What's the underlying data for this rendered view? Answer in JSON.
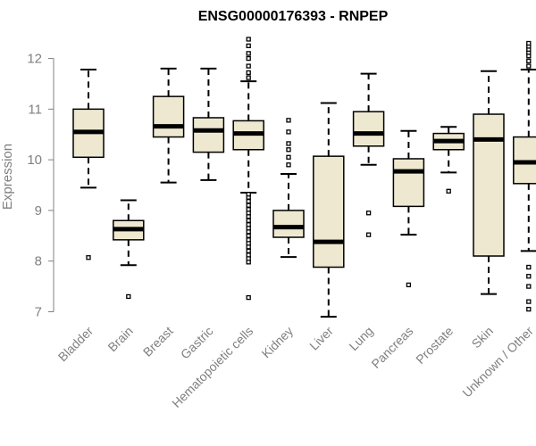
{
  "chart_data": {
    "type": "boxplot",
    "title": "ENSG00000176393 - RNPEP",
    "xlabel": "",
    "ylabel": "Expression",
    "ylim": [
      6.85,
      12.45
    ],
    "yticks": [
      7,
      8,
      9,
      10,
      11,
      12
    ],
    "box_fill": "#EEE8D0",
    "stroke_color": "#000000",
    "axis_color": "#808080",
    "categories": [
      "Bladder",
      "Brain",
      "Breast",
      "Gastric",
      "Hematopoietic cells",
      "Kidney",
      "Liver",
      "Lung",
      "Pancreas",
      "Prostate",
      "Skin",
      "Unknown / Other"
    ],
    "series": [
      {
        "name": "Bladder",
        "whisker_low": 9.45,
        "q1": 10.05,
        "median": 10.55,
        "q3": 11.0,
        "whisker_high": 11.78,
        "outliers": [
          8.07
        ]
      },
      {
        "name": "Brain",
        "whisker_low": 7.92,
        "q1": 8.42,
        "median": 8.63,
        "q3": 8.8,
        "whisker_high": 9.2,
        "outliers": [
          7.3
        ]
      },
      {
        "name": "Breast",
        "whisker_low": 9.55,
        "q1": 10.45,
        "median": 10.66,
        "q3": 11.25,
        "whisker_high": 11.8,
        "outliers": []
      },
      {
        "name": "Gastric",
        "whisker_low": 9.6,
        "q1": 10.15,
        "median": 10.58,
        "q3": 10.83,
        "whisker_high": 11.8,
        "outliers": []
      },
      {
        "name": "Hematopoietic cells",
        "whisker_low": 9.35,
        "q1": 10.2,
        "median": 10.52,
        "q3": 10.77,
        "whisker_high": 11.55,
        "outliers": [
          7.28,
          7.98,
          8.05,
          8.12,
          8.2,
          8.28,
          8.35,
          8.42,
          8.5,
          8.58,
          8.65,
          8.72,
          8.8,
          8.88,
          8.95,
          9.02,
          9.1,
          9.18,
          9.26,
          9.32,
          11.62,
          11.72,
          11.85,
          12.0,
          12.1,
          12.25,
          12.38
        ]
      },
      {
        "name": "Kidney",
        "whisker_low": 8.08,
        "q1": 8.47,
        "median": 8.67,
        "q3": 9.0,
        "whisker_high": 9.72,
        "outliers": [
          9.9,
          10.05,
          10.2,
          10.32,
          10.55,
          10.78
        ]
      },
      {
        "name": "Liver",
        "whisker_low": 6.9,
        "q1": 7.88,
        "median": 8.38,
        "q3": 10.07,
        "whisker_high": 11.12,
        "outliers": []
      },
      {
        "name": "Lung",
        "whisker_low": 9.9,
        "q1": 10.27,
        "median": 10.52,
        "q3": 10.95,
        "whisker_high": 11.7,
        "outliers": [
          8.52,
          8.95
        ]
      },
      {
        "name": "Pancreas",
        "whisker_low": 8.52,
        "q1": 9.08,
        "median": 9.77,
        "q3": 10.02,
        "whisker_high": 10.57,
        "outliers": [
          7.53
        ]
      },
      {
        "name": "Prostate",
        "whisker_low": 9.75,
        "q1": 10.2,
        "median": 10.37,
        "q3": 10.52,
        "whisker_high": 10.65,
        "outliers": [
          9.38
        ]
      },
      {
        "name": "Skin",
        "whisker_low": 7.35,
        "q1": 8.1,
        "median": 10.4,
        "q3": 10.9,
        "whisker_high": 11.75,
        "outliers": []
      },
      {
        "name": "Unknown / Other",
        "whisker_low": 8.2,
        "q1": 9.53,
        "median": 9.95,
        "q3": 10.45,
        "whisker_high": 11.78,
        "outliers": [
          7.05,
          7.2,
          7.5,
          7.7,
          7.88,
          11.85,
          11.95,
          12.05,
          12.12,
          12.18,
          12.24,
          12.3
        ]
      }
    ]
  }
}
